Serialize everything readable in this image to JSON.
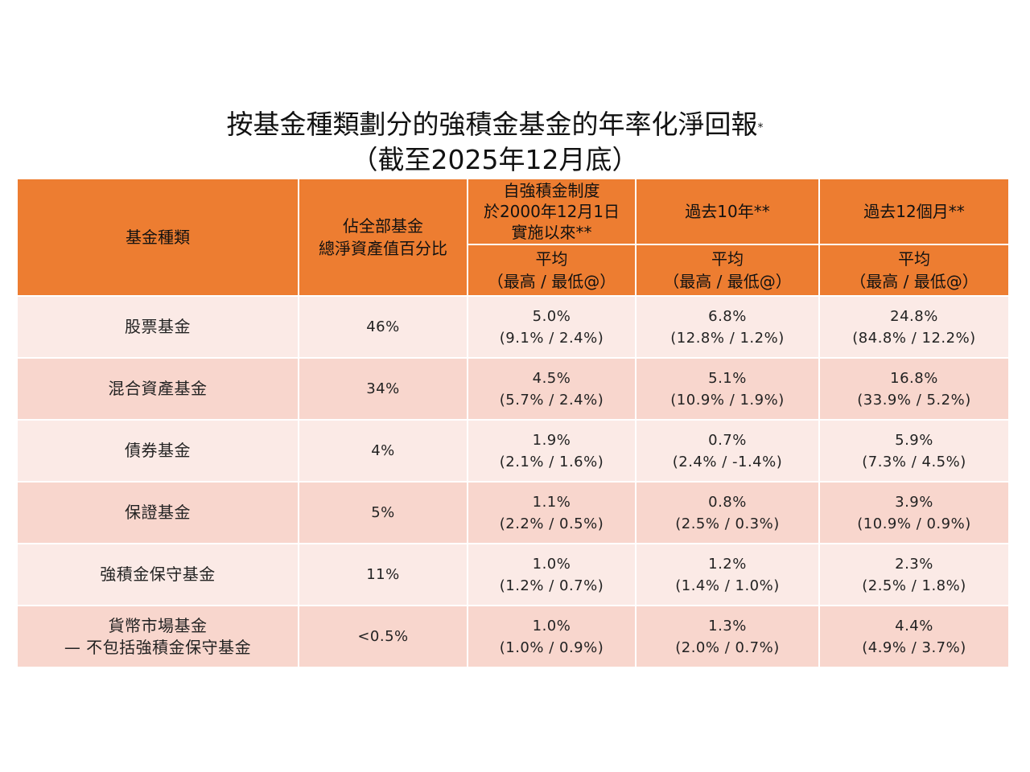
{
  "title": {
    "line1": "按基金種類劃分的強積金基金的年率化淨回報",
    "footnote_mark": "*",
    "line2": "（截至2025年12月底）"
  },
  "header": {
    "fund_type": "基金種類",
    "share_line1": "佔全部基金",
    "share_line2": "總淨資產值百分比",
    "since_inception_line1": "自強積金制度",
    "since_inception_line2": "於2000年12月1日",
    "since_inception_line3": "實施以來**",
    "past_10y": "過去10年**",
    "past_12m": "過去12個月**",
    "sub_avg": "平均",
    "sub_range": "（最高 / 最低@）"
  },
  "rows": [
    {
      "name": "股票基金",
      "name2": "",
      "share": "46%",
      "c1": [
        "5.0%",
        "(9.1% / 2.4%)"
      ],
      "c2": [
        "6.8%",
        "(12.8% / 1.2%)"
      ],
      "c3": [
        "24.8%",
        "(84.8% / 12.2%)"
      ]
    },
    {
      "name": "混合資產基金",
      "name2": "",
      "share": "34%",
      "c1": [
        "4.5%",
        "(5.7% / 2.4%)"
      ],
      "c2": [
        "5.1%",
        "(10.9% / 1.9%)"
      ],
      "c3": [
        "16.8%",
        "(33.9% / 5.2%)"
      ]
    },
    {
      "name": "債券基金",
      "name2": "",
      "share": "4%",
      "c1": [
        "1.9%",
        "(2.1% / 1.6%)"
      ],
      "c2": [
        "0.7%",
        "(2.4% / -1.4%)"
      ],
      "c3": [
        "5.9%",
        "(7.3% / 4.5%)"
      ]
    },
    {
      "name": "保證基金",
      "name2": "",
      "share": "5%",
      "c1": [
        "1.1%",
        "(2.2% / 0.5%)"
      ],
      "c2": [
        "0.8%",
        "(2.5% / 0.3%)"
      ],
      "c3": [
        "3.9%",
        "(10.9% / 0.9%)"
      ]
    },
    {
      "name": "強積金保守基金",
      "name2": "",
      "share": "11%",
      "c1": [
        "1.0%",
        "(1.2% / 0.7%)"
      ],
      "c2": [
        "1.2%",
        "(1.4% / 1.0%)"
      ],
      "c3": [
        "2.3%",
        "(2.5% / 1.8%)"
      ]
    },
    {
      "name": "貨幣市場基金",
      "name2": "— 不包括強積金保守基金",
      "share": "<0.5%",
      "c1": [
        "1.0%",
        "(1.0% / 0.9%)"
      ],
      "c2": [
        "1.3%",
        "(2.0% / 0.7%)"
      ],
      "c3": [
        "4.4%",
        "(4.9% / 3.7%)"
      ]
    }
  ],
  "colors": {
    "header": "#ED7D31",
    "row_light": "#FBEAE6",
    "row_dark": "#F8D6CD"
  }
}
